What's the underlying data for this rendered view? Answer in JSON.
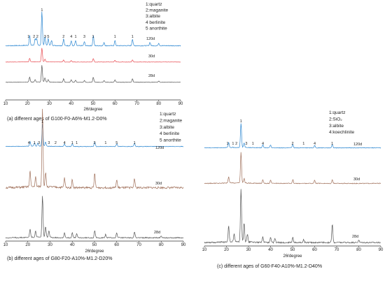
{
  "chart_data": [
    {
      "type": "line",
      "caption": "(a) different ages of G100-F0-A6%-M1.2-D0%",
      "xlabel": "2θ/degree",
      "ylabel": "",
      "xlim": [
        10,
        90
      ],
      "x_ticks": [
        "10",
        "20",
        "30",
        "40",
        "50",
        "60",
        "70",
        "80",
        "90"
      ],
      "legend": [
        "1:quartz",
        "2:maganite",
        "3:albite",
        "4 berlinite",
        "5 anorthite"
      ],
      "series": [
        {
          "age": "120d",
          "color": "#2a86d1",
          "peaks": [
            [
              21,
              0.3
            ],
            [
              23.5,
              0.2
            ],
            [
              24.2,
              0.2
            ],
            [
              26.6,
              1.0
            ],
            [
              28,
              0.25
            ],
            [
              29.5,
              0.2
            ],
            [
              31,
              0.15
            ],
            [
              36.5,
              0.2
            ],
            [
              40,
              0.15
            ],
            [
              42,
              0.15
            ],
            [
              46,
              0.12
            ],
            [
              50.1,
              0.3
            ],
            [
              55,
              0.1
            ],
            [
              60,
              0.15
            ],
            [
              68,
              0.2
            ],
            [
              76,
              0.1
            ],
            [
              80,
              0.08
            ]
          ]
        },
        {
          "age": "30d",
          "color": "#e84a50",
          "peaks": [
            [
              21,
              0.25
            ],
            [
              26.6,
              1.0
            ],
            [
              28,
              0.2
            ],
            [
              36.5,
              0.15
            ],
            [
              40,
              0.12
            ],
            [
              50.1,
              0.25
            ],
            [
              60,
              0.12
            ],
            [
              68,
              0.15
            ]
          ]
        },
        {
          "age": "28d",
          "color": "#555555",
          "peaks": [
            [
              21,
              0.3
            ],
            [
              23.5,
              0.15
            ],
            [
              26.6,
              1.0
            ],
            [
              28,
              0.25
            ],
            [
              29.5,
              0.15
            ],
            [
              36.5,
              0.2
            ],
            [
              40,
              0.15
            ],
            [
              42,
              0.12
            ],
            [
              46,
              0.1
            ],
            [
              50.1,
              0.3
            ],
            [
              55,
              0.1
            ],
            [
              60,
              0.15
            ],
            [
              68,
              0.2
            ],
            [
              80,
              0.08
            ]
          ]
        }
      ],
      "peak_labels": [
        {
          "text": "1",
          "x": 20.5
        },
        {
          "text": "2",
          "x": 23
        },
        {
          "text": "2",
          "x": 24.5
        },
        {
          "text": "1",
          "x": 26.6
        },
        {
          "text": "3",
          "x": 28
        },
        {
          "text": "5",
          "x": 29.5
        },
        {
          "text": "2",
          "x": 36.5
        },
        {
          "text": "4",
          "x": 40
        },
        {
          "text": "1",
          "x": 42
        },
        {
          "text": "3",
          "x": 46
        },
        {
          "text": "1",
          "x": 50
        },
        {
          "text": "1",
          "x": 60
        },
        {
          "text": "1",
          "x": 68
        }
      ]
    },
    {
      "type": "line",
      "caption": "(b) different ages of G80-F20-A10%-M1.2-D20%",
      "xlabel": "2θ/degree",
      "ylabel": "",
      "xlim": [
        10,
        90
      ],
      "x_ticks": [
        "10",
        "20",
        "30",
        "40",
        "50",
        "60",
        "70",
        "80",
        "90"
      ],
      "legend": [
        "1:quartz",
        "2:maganite",
        "3:albite",
        "4 berlinite",
        "5 anorthite"
      ],
      "series": [
        {
          "age": "120d",
          "color": "#2a86d1",
          "peaks": [
            [
              21,
              0.2
            ],
            [
              23,
              0.15
            ],
            [
              24.5,
              0.15
            ],
            [
              26.6,
              1.0
            ],
            [
              28,
              0.2
            ],
            [
              36.5,
              0.12
            ],
            [
              40,
              0.12
            ],
            [
              50.1,
              0.2
            ],
            [
              60,
              0.12
            ],
            [
              68,
              0.15
            ]
          ]
        },
        {
          "age": "30d",
          "color": "#a0705a",
          "peaks": [
            [
              21,
              0.2
            ],
            [
              23.5,
              0.12
            ],
            [
              26.6,
              1.0
            ],
            [
              28,
              0.18
            ],
            [
              36.5,
              0.12
            ],
            [
              40,
              0.1
            ],
            [
              50.1,
              0.18
            ],
            [
              60,
              0.1
            ],
            [
              68,
              0.12
            ]
          ]
        },
        {
          "age": "28d",
          "color": "#555555",
          "peaks": [
            [
              21,
              0.2
            ],
            [
              23.5,
              0.15
            ],
            [
              26.6,
              1.0
            ],
            [
              28,
              0.25
            ],
            [
              29.5,
              0.15
            ],
            [
              36.5,
              0.12
            ],
            [
              40,
              0.12
            ],
            [
              42,
              0.1
            ],
            [
              50.1,
              0.18
            ],
            [
              55,
              0.08
            ],
            [
              60,
              0.12
            ],
            [
              68,
              0.15
            ],
            [
              80,
              0.05
            ]
          ]
        }
      ],
      "peak_labels": [
        {
          "text": "4",
          "x": 20.5
        },
        {
          "text": "1",
          "x": 23
        },
        {
          "text": "3",
          "x": 25
        },
        {
          "text": "1",
          "x": 26.6
        },
        {
          "text": "3",
          "x": 29.5
        },
        {
          "text": "2",
          "x": 32.5
        },
        {
          "text": "4",
          "x": 36.5
        },
        {
          "text": "1",
          "x": 40
        },
        {
          "text": "1",
          "x": 42
        },
        {
          "text": "3",
          "x": 50
        },
        {
          "text": "1",
          "x": 55
        },
        {
          "text": "5",
          "x": 60
        },
        {
          "text": "1",
          "x": 68
        }
      ]
    },
    {
      "type": "line",
      "caption": "(c) different ages of G60-F40-A10%-M1.2-D40%",
      "xlabel": "2θ/degree",
      "ylabel": "",
      "xlim": [
        10,
        90
      ],
      "x_ticks": [
        "10",
        "20",
        "30",
        "40",
        "50",
        "60",
        "70",
        "80",
        "90"
      ],
      "legend": [
        "1:quartz",
        "2:SiO₂",
        "3:albite",
        "4:koechlinite"
      ],
      "series": [
        {
          "age": "120d",
          "color": "#2a86d1",
          "peaks": [
            [
              21,
              0.2
            ],
            [
              26.6,
              1.0
            ],
            [
              28,
              0.2
            ],
            [
              36.5,
              0.12
            ],
            [
              40,
              0.12
            ],
            [
              50.1,
              0.15
            ],
            [
              60,
              0.1
            ],
            [
              68,
              0.15
            ]
          ]
        },
        {
          "age": "30d",
          "color": "#a0705a",
          "peaks": [
            [
              21,
              0.2
            ],
            [
              26.6,
              1.0
            ],
            [
              28,
              0.15
            ],
            [
              36.5,
              0.12
            ],
            [
              40,
              0.1
            ],
            [
              50.1,
              0.12
            ],
            [
              60,
              0.1
            ],
            [
              68,
              0.12
            ]
          ]
        },
        {
          "age": "28d",
          "color": "#555555",
          "peaks": [
            [
              21,
              0.3
            ],
            [
              23.5,
              0.15
            ],
            [
              26.6,
              1.0
            ],
            [
              28,
              0.35
            ],
            [
              29.5,
              0.15
            ],
            [
              36.5,
              0.1
            ],
            [
              40,
              0.1
            ],
            [
              42,
              0.08
            ],
            [
              50.1,
              0.1
            ],
            [
              55,
              0.06
            ],
            [
              68,
              0.35
            ],
            [
              80,
              0.05
            ]
          ]
        }
      ],
      "peak_labels": [
        {
          "text": "1",
          "x": 20.5
        },
        {
          "text": "1",
          "x": 23
        },
        {
          "text": "2",
          "x": 24.5
        },
        {
          "text": "1",
          "x": 26.6
        },
        {
          "text": "3",
          "x": 29
        },
        {
          "text": "1",
          "x": 32
        },
        {
          "text": "4",
          "x": 36.5
        },
        {
          "text": "2",
          "x": 50
        },
        {
          "text": "1",
          "x": 55
        },
        {
          "text": "4",
          "x": 60
        },
        {
          "text": "1",
          "x": 68
        }
      ]
    }
  ]
}
